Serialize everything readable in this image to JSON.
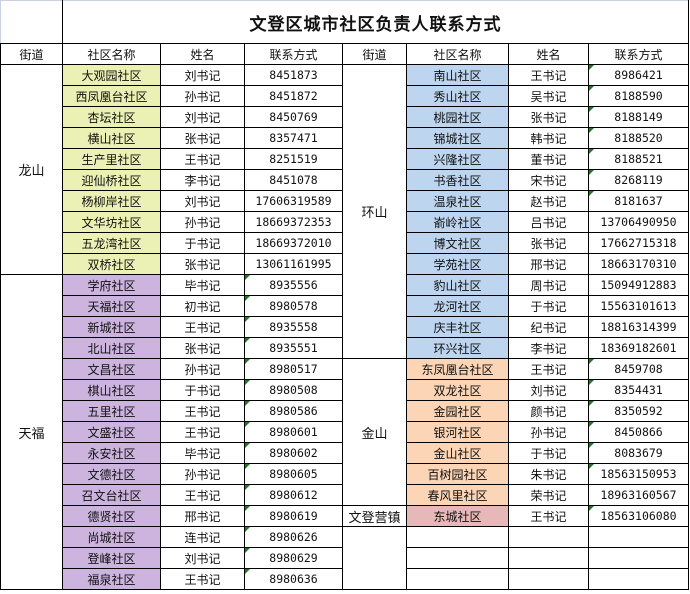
{
  "title": "文登区城市社区负责人联系方式",
  "headers": [
    "街道",
    "社区名称",
    "姓名",
    "联系方式"
  ],
  "colors": {
    "龙山": "#ebf1b4",
    "天福": "#ccb4de",
    "环山": "#bdd5ef",
    "金山": "#fbd5b5",
    "文登营镇": "#e6b9b8"
  },
  "left": [
    {
      "street": "龙山",
      "rows": [
        [
          "大观园社区",
          "刘书记",
          "8451873",
          0
        ],
        [
          "西凤凰台社区",
          "孙书记",
          "8451872",
          0
        ],
        [
          "杏坛社区",
          "刘书记",
          "8450769",
          0
        ],
        [
          "横山社区",
          "张书记",
          "8357471",
          0
        ],
        [
          "生产里社区",
          "王书记",
          "8251519",
          0
        ],
        [
          "迎仙桥社区",
          "李书记",
          "8451078",
          0
        ],
        [
          "杨柳岸社区",
          "刘书记",
          "17606319589",
          0
        ],
        [
          "文华坊社区",
          "孙书记",
          "18669372353",
          0
        ],
        [
          "五龙湾社区",
          "于书记",
          "18669372010",
          0
        ],
        [
          "双桥社区",
          "张书记",
          "13061161995",
          0
        ]
      ]
    },
    {
      "street": "天福",
      "rows": [
        [
          "学府社区",
          "毕书记",
          "8935556",
          1
        ],
        [
          "天福社区",
          "初书记",
          "8980578",
          1
        ],
        [
          "新城社区",
          "王书记",
          "8935558",
          1
        ],
        [
          "北山社区",
          "张书记",
          "8935551",
          1
        ],
        [
          "文昌社区",
          "孙书记",
          "8980517",
          1
        ],
        [
          "棋山社区",
          "于书记",
          "8980508",
          1
        ],
        [
          "五里社区",
          "王书记",
          "8980586",
          1
        ],
        [
          "文盛社区",
          "王书记",
          "8980601",
          1
        ],
        [
          "永安社区",
          "毕书记",
          "8980602",
          1
        ],
        [
          "文德社区",
          "孙书记",
          "8980605",
          1
        ],
        [
          "召文台社区",
          "王书记",
          "8980612",
          1
        ],
        [
          "德贤社区",
          "邢书记",
          "8980619",
          1
        ],
        [
          "尚城社区",
          "连书记",
          "8980626",
          1
        ],
        [
          "登峰社区",
          "刘书记",
          "8980629",
          1
        ],
        [
          "福泉社区",
          "王书记",
          "8980636",
          1
        ]
      ]
    }
  ],
  "right": [
    {
      "street": "环山",
      "rows": [
        [
          "南山社区",
          "王书记",
          "8986421",
          1
        ],
        [
          "秀山社区",
          "吴书记",
          "8188590",
          1
        ],
        [
          "桃园社区",
          "张书记",
          "8188149",
          1
        ],
        [
          "锦城社区",
          "韩书记",
          "8188520",
          1
        ],
        [
          "兴隆社区",
          "董书记",
          "8188521",
          1
        ],
        [
          "书香社区",
          "宋书记",
          "8268119",
          1
        ],
        [
          "温泉社区",
          "赵书记",
          "8181637",
          1
        ],
        [
          "嵛岭社区",
          "吕书记",
          "13706490950",
          0
        ],
        [
          "博文社区",
          "张书记",
          "17662715318",
          0
        ],
        [
          "学苑社区",
          "邢书记",
          "18663170310",
          0
        ],
        [
          "豹山社区",
          "周书记",
          "15094912883",
          0
        ],
        [
          "龙河社区",
          "于书记",
          "15563101613",
          0
        ],
        [
          "庆丰社区",
          "纪书记",
          "18816314399",
          0
        ],
        [
          "环兴社区",
          "李书记",
          "18369182601",
          0
        ]
      ]
    },
    {
      "street": "金山",
      "rows": [
        [
          "东凤凰台社区",
          "王书记",
          "8459708",
          1
        ],
        [
          "双龙社区",
          "刘书记",
          "8354431",
          1
        ],
        [
          "金园社区",
          "颜书记",
          "8350592",
          1
        ],
        [
          "银河社区",
          "孙书记",
          "8450866",
          1
        ],
        [
          "金山社区",
          "于书记",
          "8083679",
          1
        ],
        [
          "百树园社区",
          "朱书记",
          "18563150953",
          1
        ],
        [
          "春风里社区",
          "荣书记",
          "18963160567",
          0
        ]
      ]
    },
    {
      "street": "文登营镇",
      "rows": [
        [
          "东城社区",
          "王书记",
          "18563106080",
          1
        ]
      ]
    },
    {
      "street": "",
      "rows": [
        [
          "",
          "",
          "",
          0
        ],
        [
          "",
          "",
          "",
          0
        ],
        [
          "",
          "",
          "",
          0
        ]
      ]
    }
  ]
}
